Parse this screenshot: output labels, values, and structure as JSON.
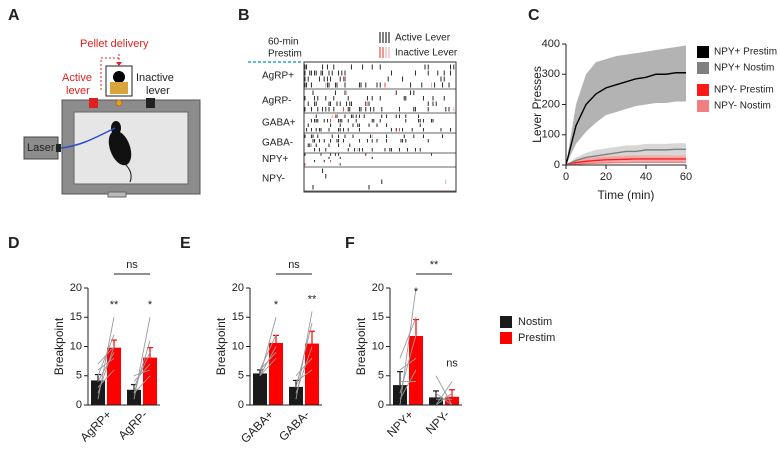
{
  "panel_labels": [
    "A",
    "B",
    "C",
    "D",
    "E",
    "F"
  ],
  "schematic": {
    "pellet_delivery": "Pellet delivery",
    "active_lever": [
      "Active",
      "lever"
    ],
    "inactive_lever": [
      "Inactive",
      "lever"
    ],
    "laser": "Laser"
  },
  "raster": {
    "prestim_label": [
      "60-min",
      "Prestim"
    ],
    "legend": [
      "Active Lever",
      "Inactive Lever"
    ],
    "rows": [
      "AgRP+",
      "AgRP-",
      "GABA+",
      "GABA-",
      "NPY+",
      "NPY-"
    ]
  },
  "chart_data": [
    {
      "type": "line",
      "xlabel": "Time (min)",
      "ylabel": "Lever Presses",
      "x": [
        0,
        5,
        10,
        15,
        20,
        25,
        30,
        35,
        40,
        45,
        50,
        55,
        60
      ],
      "xlim": [
        0,
        60
      ],
      "xticks": [
        0,
        20,
        40,
        60
      ],
      "ylim": [
        0,
        400
      ],
      "yticks": [
        0,
        100,
        200,
        300,
        400
      ],
      "series": [
        {
          "name": "NPY+ Prestim",
          "color": "#000000",
          "band_color": "#a6a6a6",
          "values": [
            0,
            130,
            200,
            235,
            255,
            265,
            275,
            285,
            290,
            300,
            300,
            305,
            305
          ],
          "upper": [
            0,
            200,
            300,
            340,
            350,
            360,
            365,
            370,
            375,
            380,
            385,
            390,
            395
          ],
          "lower": [
            0,
            70,
            110,
            140,
            165,
            175,
            185,
            195,
            200,
            205,
            205,
            210,
            210
          ]
        },
        {
          "name": "NPY+ Nostim",
          "color": "#7f7f7f",
          "band_color": "#d0d0d0",
          "values": [
            0,
            15,
            25,
            30,
            35,
            40,
            45,
            45,
            50,
            50,
            50,
            52,
            52
          ],
          "upper": [
            0,
            25,
            40,
            50,
            55,
            60,
            65,
            65,
            70,
            70,
            70,
            72,
            72
          ],
          "lower": [
            0,
            5,
            10,
            15,
            18,
            22,
            25,
            27,
            30,
            30,
            30,
            32,
            32
          ]
        },
        {
          "name": "NPY- Prestim",
          "color": "#ff1a1a",
          "band_color": "#f7a0a0",
          "values": [
            0,
            8,
            12,
            15,
            17,
            18,
            19,
            20,
            20,
            20,
            20,
            20,
            20
          ],
          "upper": [
            0,
            15,
            22,
            26,
            28,
            30,
            31,
            32,
            32,
            32,
            32,
            32,
            32
          ],
          "lower": [
            0,
            2,
            4,
            6,
            7,
            8,
            9,
            10,
            10,
            10,
            10,
            10,
            10
          ]
        },
        {
          "name": "NPY- Nostim",
          "color": "#f08080",
          "values": [
            0,
            3,
            5,
            6,
            7,
            8,
            8,
            9,
            9,
            9,
            9,
            9,
            9
          ]
        }
      ]
    },
    {
      "type": "bar",
      "ylabel": "Breakpoint",
      "categories": [
        "AgRP+",
        "AgRP-"
      ],
      "ylim": [
        0,
        20
      ],
      "yticks": [
        0,
        5,
        10,
        15,
        20
      ],
      "series": [
        {
          "color": "#1a1a1a",
          "values": [
            4.2,
            2.6
          ],
          "errors": [
            1.0,
            0.9
          ]
        },
        {
          "color": "#ff0000",
          "values": [
            9.8,
            8.1
          ],
          "errors": [
            1.3,
            1.7
          ]
        }
      ],
      "pairs": [
        [
          [
            1,
            15
          ],
          [
            2,
            10
          ],
          [
            7,
            10
          ],
          [
            5,
            12
          ],
          [
            4,
            9
          ],
          [
            3,
            6
          ],
          [
            6,
            8
          ]
        ],
        [
          [
            1,
            15
          ],
          [
            2,
            11
          ],
          [
            3,
            9
          ],
          [
            4,
            7
          ],
          [
            2,
            5
          ],
          [
            5,
            6
          ]
        ]
      ],
      "significance": [
        "**",
        "*"
      ],
      "bracket_label": "ns",
      "legend": false
    },
    {
      "type": "bar",
      "ylabel": "Breakpoint",
      "categories": [
        "GABA+",
        "GABA-"
      ],
      "ylim": [
        0,
        20
      ],
      "yticks": [
        0,
        5,
        10,
        15,
        20
      ],
      "series": [
        {
          "color": "#1a1a1a",
          "values": [
            5.4,
            3.1
          ],
          "errors": [
            0.6,
            1.1
          ]
        },
        {
          "color": "#ff0000",
          "values": [
            10.6,
            10.5
          ],
          "errors": [
            1.3,
            2.1
          ]
        }
      ],
      "pairs": [
        [
          [
            5,
            15
          ],
          [
            6,
            12
          ],
          [
            5,
            10
          ],
          [
            6,
            9
          ],
          [
            5,
            8
          ]
        ],
        [
          [
            1,
            16
          ],
          [
            3,
            14
          ],
          [
            2,
            10
          ],
          [
            5,
            8
          ],
          [
            4,
            6
          ]
        ]
      ],
      "significance": [
        "*",
        "**"
      ],
      "bracket_label": "ns",
      "legend": false
    },
    {
      "type": "bar",
      "ylabel": "Breakpoint",
      "categories": [
        "NPY+",
        "NPY-"
      ],
      "ylim": [
        0,
        20
      ],
      "yticks": [
        0,
        5,
        10,
        15,
        20
      ],
      "series": [
        {
          "name": "Nostim",
          "color": "#1a1a1a",
          "values": [
            3.4,
            1.3
          ],
          "errors": [
            2.3,
            1.1
          ]
        },
        {
          "name": "Prestim",
          "color": "#ff0000",
          "values": [
            11.8,
            1.4
          ],
          "errors": [
            2.8,
            1.2
          ]
        }
      ],
      "pairs": [
        [
          [
            0,
            20
          ],
          [
            8,
            15
          ],
          [
            2,
            12
          ],
          [
            1,
            6
          ],
          [
            4,
            4
          ],
          [
            6,
            8
          ]
        ],
        [
          [
            0,
            4
          ],
          [
            5,
            0
          ],
          [
            1,
            1
          ],
          [
            0,
            2
          ],
          [
            2,
            0
          ]
        ]
      ],
      "significance": [
        "*",
        "ns"
      ],
      "bracket_label": "**",
      "legend": true
    }
  ]
}
